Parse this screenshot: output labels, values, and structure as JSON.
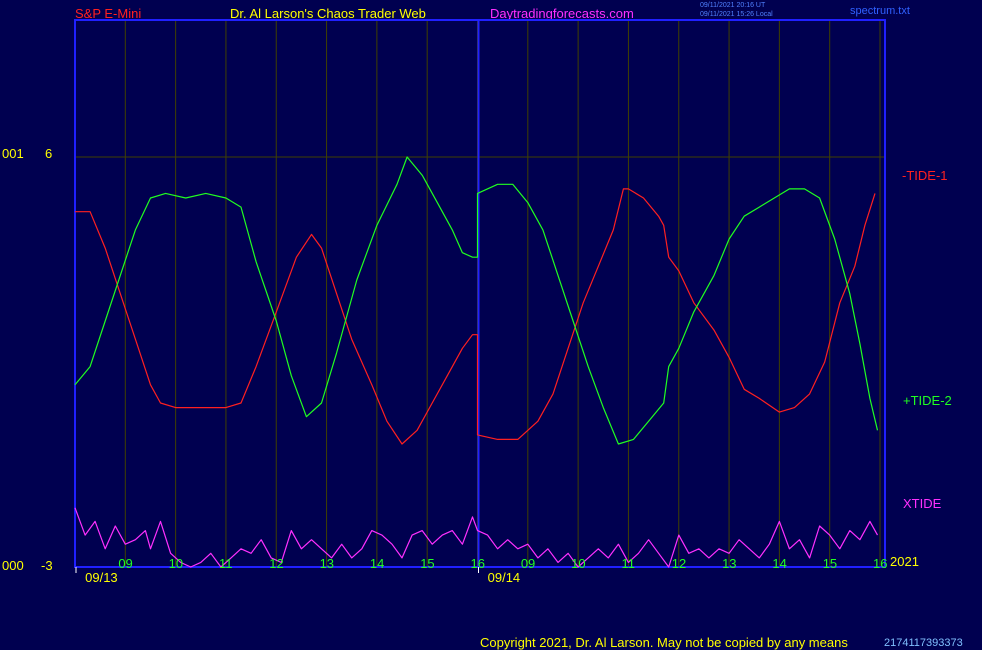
{
  "header": {
    "instrument": "S&P E-Mini",
    "site": "Dr. Al Larson's Chaos Trader Web",
    "url": "Daytradingforecasts.com",
    "stamp_utc": "09/11/2021 20:16 UT",
    "stamp_local": "09/11/2021 15:26 Local",
    "file": "spectrum.txt"
  },
  "footer": {
    "copyright": "Copyright 2021, Dr. Al Larson. May not be copied by any means",
    "code": "2174117393373"
  },
  "left_labels": {
    "upper_prefix": "001",
    "lower_prefix": "000"
  },
  "colors": {
    "bg": "#000050",
    "frame": "#2020ff",
    "tide1": "#ff2020",
    "tide2": "#20ff20",
    "xtide": "#ff30ff",
    "hour": "#20ff20",
    "date": "#ffff00",
    "grid": "#404000"
  },
  "chart_data": {
    "type": "line",
    "ylim": [
      -3,
      6
    ],
    "yticks": [
      "6",
      "-3"
    ],
    "xlim": [
      0,
      16
    ],
    "hour_labels": [
      {
        "x": 1,
        "label": "09"
      },
      {
        "x": 2,
        "label": "10"
      },
      {
        "x": 3,
        "label": "11"
      },
      {
        "x": 4,
        "label": "12"
      },
      {
        "x": 5,
        "label": "13"
      },
      {
        "x": 6,
        "label": "14"
      },
      {
        "x": 7,
        "label": "15"
      },
      {
        "x": 8,
        "label": "16"
      },
      {
        "x": 9,
        "label": "09"
      },
      {
        "x": 10,
        "label": "10"
      },
      {
        "x": 11,
        "label": "11"
      },
      {
        "x": 12,
        "label": "12"
      },
      {
        "x": 13,
        "label": "13"
      },
      {
        "x": 14,
        "label": "14"
      },
      {
        "x": 15,
        "label": "15"
      },
      {
        "x": 16,
        "label": "16"
      }
    ],
    "date_labels": [
      {
        "x": 0.4,
        "label": "09/13"
      },
      {
        "x": 8.4,
        "label": "09/14"
      }
    ],
    "year_label": "2021",
    "day_divider_x": 8,
    "series": [
      {
        "name": "-TIDE-1",
        "color": "#ff2020",
        "points": [
          [
            0,
            4.8
          ],
          [
            0.3,
            4.8
          ],
          [
            0.6,
            4.0
          ],
          [
            0.9,
            3.0
          ],
          [
            1.2,
            2.0
          ],
          [
            1.5,
            1.0
          ],
          [
            1.7,
            0.6
          ],
          [
            2.0,
            0.5
          ],
          [
            2.5,
            0.5
          ],
          [
            3.0,
            0.5
          ],
          [
            3.3,
            0.6
          ],
          [
            3.6,
            1.4
          ],
          [
            4.0,
            2.6
          ],
          [
            4.4,
            3.8
          ],
          [
            4.7,
            4.3
          ],
          [
            4.9,
            4.0
          ],
          [
            5.2,
            3.0
          ],
          [
            5.5,
            2.0
          ],
          [
            5.9,
            1.0
          ],
          [
            6.2,
            0.2
          ],
          [
            6.5,
            -0.3
          ],
          [
            6.8,
            0.0
          ],
          [
            7.1,
            0.6
          ],
          [
            7.4,
            1.2
          ],
          [
            7.7,
            1.8
          ],
          [
            7.9,
            2.1
          ],
          [
            8.0,
            2.1
          ],
          [
            8.0,
            -0.1
          ],
          [
            8.4,
            -0.2
          ],
          [
            8.8,
            -0.2
          ],
          [
            9.2,
            0.2
          ],
          [
            9.5,
            0.8
          ],
          [
            9.8,
            1.8
          ],
          [
            10.1,
            2.8
          ],
          [
            10.4,
            3.6
          ],
          [
            10.7,
            4.4
          ],
          [
            10.9,
            5.3
          ],
          [
            11.0,
            5.3
          ],
          [
            11.3,
            5.1
          ],
          [
            11.6,
            4.7
          ],
          [
            11.7,
            4.5
          ],
          [
            11.8,
            3.8
          ],
          [
            12.0,
            3.5
          ],
          [
            12.3,
            2.8
          ],
          [
            12.7,
            2.2
          ],
          [
            13.0,
            1.6
          ],
          [
            13.3,
            0.9
          ],
          [
            13.6,
            0.7
          ],
          [
            14.0,
            0.4
          ],
          [
            14.3,
            0.5
          ],
          [
            14.6,
            0.8
          ],
          [
            14.9,
            1.5
          ],
          [
            15.2,
            2.8
          ],
          [
            15.5,
            3.6
          ],
          [
            15.7,
            4.5
          ],
          [
            15.9,
            5.2
          ]
        ]
      },
      {
        "name": "+TIDE-2",
        "color": "#20ff20",
        "points": [
          [
            0,
            1.0
          ],
          [
            0.3,
            1.4
          ],
          [
            0.6,
            2.4
          ],
          [
            0.9,
            3.4
          ],
          [
            1.2,
            4.4
          ],
          [
            1.5,
            5.1
          ],
          [
            1.8,
            5.2
          ],
          [
            2.2,
            5.1
          ],
          [
            2.6,
            5.2
          ],
          [
            3.0,
            5.1
          ],
          [
            3.3,
            4.9
          ],
          [
            3.6,
            3.7
          ],
          [
            4.0,
            2.4
          ],
          [
            4.3,
            1.2
          ],
          [
            4.6,
            0.3
          ],
          [
            4.9,
            0.6
          ],
          [
            5.2,
            1.7
          ],
          [
            5.6,
            3.3
          ],
          [
            6.0,
            4.5
          ],
          [
            6.4,
            5.4
          ],
          [
            6.6,
            6.0
          ],
          [
            6.9,
            5.6
          ],
          [
            7.2,
            5.0
          ],
          [
            7.5,
            4.4
          ],
          [
            7.7,
            3.9
          ],
          [
            7.9,
            3.8
          ],
          [
            8.0,
            3.8
          ],
          [
            8.0,
            5.2
          ],
          [
            8.4,
            5.4
          ],
          [
            8.7,
            5.4
          ],
          [
            9.0,
            5.0
          ],
          [
            9.3,
            4.4
          ],
          [
            9.6,
            3.4
          ],
          [
            9.9,
            2.4
          ],
          [
            10.2,
            1.4
          ],
          [
            10.5,
            0.5
          ],
          [
            10.8,
            -0.3
          ],
          [
            11.1,
            -0.2
          ],
          [
            11.4,
            0.2
          ],
          [
            11.7,
            0.6
          ],
          [
            11.8,
            1.4
          ],
          [
            12.0,
            1.8
          ],
          [
            12.3,
            2.6
          ],
          [
            12.7,
            3.4
          ],
          [
            13.0,
            4.2
          ],
          [
            13.3,
            4.7
          ],
          [
            13.6,
            4.9
          ],
          [
            13.9,
            5.1
          ],
          [
            14.2,
            5.3
          ],
          [
            14.5,
            5.3
          ],
          [
            14.8,
            5.1
          ],
          [
            15.1,
            4.2
          ],
          [
            15.4,
            3.0
          ],
          [
            15.6,
            1.9
          ],
          [
            15.8,
            0.7
          ],
          [
            15.95,
            0.0
          ]
        ]
      },
      {
        "name": "XTIDE",
        "color": "#ff30ff",
        "points": [
          [
            0,
            -1.7
          ],
          [
            0.2,
            -2.3
          ],
          [
            0.4,
            -2.0
          ],
          [
            0.6,
            -2.6
          ],
          [
            0.8,
            -2.1
          ],
          [
            1.0,
            -2.5
          ],
          [
            1.2,
            -2.4
          ],
          [
            1.4,
            -2.2
          ],
          [
            1.5,
            -2.6
          ],
          [
            1.7,
            -2.0
          ],
          [
            1.9,
            -2.7
          ],
          [
            2.1,
            -2.9
          ],
          [
            2.3,
            -3.0
          ],
          [
            2.5,
            -2.9
          ],
          [
            2.7,
            -2.7
          ],
          [
            2.9,
            -3.0
          ],
          [
            3.1,
            -2.8
          ],
          [
            3.3,
            -2.6
          ],
          [
            3.5,
            -2.7
          ],
          [
            3.7,
            -2.4
          ],
          [
            3.9,
            -2.8
          ],
          [
            4.1,
            -2.9
          ],
          [
            4.3,
            -2.2
          ],
          [
            4.5,
            -2.6
          ],
          [
            4.7,
            -2.4
          ],
          [
            4.9,
            -2.6
          ],
          [
            5.1,
            -2.8
          ],
          [
            5.3,
            -2.5
          ],
          [
            5.5,
            -2.8
          ],
          [
            5.7,
            -2.6
          ],
          [
            5.9,
            -2.2
          ],
          [
            6.1,
            -2.3
          ],
          [
            6.3,
            -2.5
          ],
          [
            6.5,
            -2.8
          ],
          [
            6.7,
            -2.3
          ],
          [
            6.9,
            -2.2
          ],
          [
            7.1,
            -2.5
          ],
          [
            7.3,
            -2.3
          ],
          [
            7.5,
            -2.2
          ],
          [
            7.7,
            -2.5
          ],
          [
            7.9,
            -1.9
          ],
          [
            8.0,
            -2.2
          ],
          [
            8.2,
            -2.3
          ],
          [
            8.4,
            -2.6
          ],
          [
            8.6,
            -2.4
          ],
          [
            8.8,
            -2.6
          ],
          [
            9.0,
            -2.5
          ],
          [
            9.2,
            -2.8
          ],
          [
            9.4,
            -2.6
          ],
          [
            9.6,
            -2.9
          ],
          [
            9.8,
            -2.7
          ],
          [
            10.0,
            -3.0
          ],
          [
            10.2,
            -2.8
          ],
          [
            10.4,
            -2.6
          ],
          [
            10.6,
            -2.8
          ],
          [
            10.8,
            -2.5
          ],
          [
            11.0,
            -2.9
          ],
          [
            11.2,
            -2.7
          ],
          [
            11.4,
            -2.4
          ],
          [
            11.6,
            -2.7
          ],
          [
            11.8,
            -3.0
          ],
          [
            12.0,
            -2.3
          ],
          [
            12.2,
            -2.7
          ],
          [
            12.4,
            -2.6
          ],
          [
            12.6,
            -2.8
          ],
          [
            12.8,
            -2.6
          ],
          [
            13.0,
            -2.7
          ],
          [
            13.2,
            -2.4
          ],
          [
            13.4,
            -2.6
          ],
          [
            13.6,
            -2.8
          ],
          [
            13.8,
            -2.5
          ],
          [
            14.0,
            -2.0
          ],
          [
            14.2,
            -2.6
          ],
          [
            14.4,
            -2.4
          ],
          [
            14.6,
            -2.8
          ],
          [
            14.8,
            -2.1
          ],
          [
            15.0,
            -2.3
          ],
          [
            15.2,
            -2.6
          ],
          [
            15.4,
            -2.2
          ],
          [
            15.6,
            -2.4
          ],
          [
            15.8,
            -2.0
          ],
          [
            15.95,
            -2.3
          ]
        ]
      }
    ]
  }
}
